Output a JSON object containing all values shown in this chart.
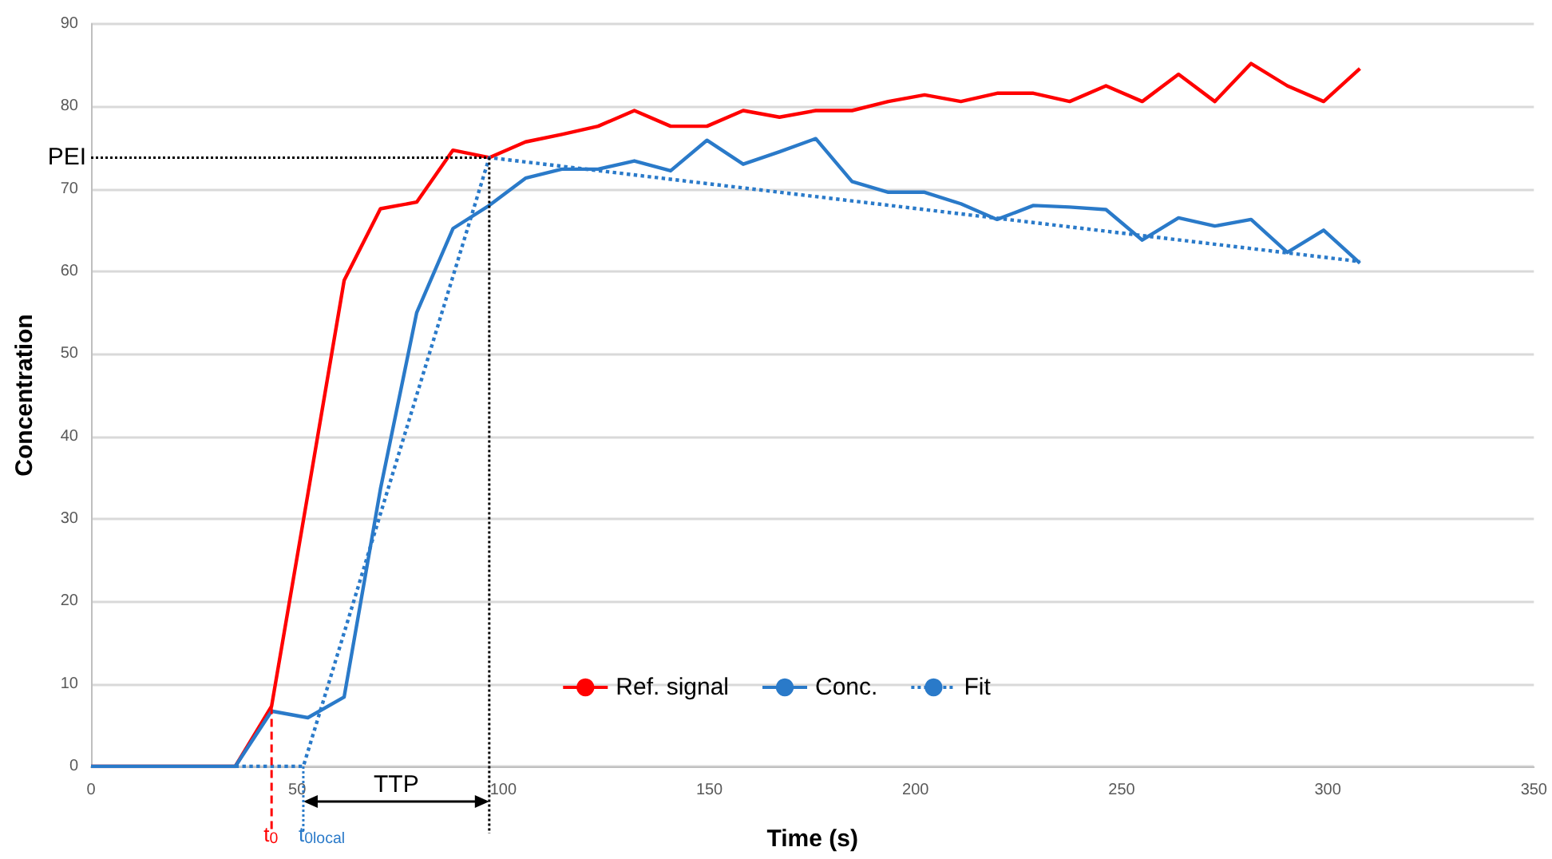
{
  "chart_data": {
    "type": "line",
    "xlabel": "Time (s)",
    "ylabel": "Concentration",
    "x": [
      0,
      35,
      43.8,
      52.6,
      61.4,
      70.2,
      79,
      87.8,
      96.6,
      105.4,
      114.2,
      123,
      131.8,
      140.6,
      149.4,
      158.2,
      167,
      175.8,
      184.6,
      193.4,
      202.2,
      211,
      219.8,
      228.6,
      237.4,
      246.2,
      255,
      263.8,
      272.6,
      281.4,
      290.2,
      299,
      307.8
    ],
    "series": [
      {
        "name": "Ref. signal",
        "color": "#ff0000",
        "values": [
          0,
          0,
          7.3,
          33,
          58.9,
          67.6,
          68.4,
          74.7,
          73.8,
          75.7,
          76.6,
          77.6,
          79.5,
          77.6,
          77.6,
          79.5,
          78.7,
          79.5,
          79.5,
          80.6,
          81.4,
          80.6,
          81.6,
          81.6,
          80.6,
          82.5,
          80.6,
          83.9,
          80.6,
          85.2,
          82.5,
          80.6,
          84.6
        ]
      },
      {
        "name": "Conc.",
        "color": "#2a7ac9",
        "values": [
          0,
          0,
          6.7,
          5.9,
          8.4,
          33.6,
          55.0,
          65.2,
          68.0,
          71.3,
          72.4,
          72.4,
          73.4,
          72.2,
          75.9,
          73.0,
          74.5,
          76.1,
          70.9,
          69.6,
          69.6,
          68.2,
          66.3,
          68.0,
          67.8,
          67.5,
          63.8,
          66.5,
          65.5,
          66.3,
          62.3,
          65.0,
          61.0
        ]
      },
      {
        "name": "Fit",
        "color": "#2a7ac9",
        "line_style": "dotted",
        "x": [
          35,
          51.5,
          96.6,
          307.8
        ],
        "values": [
          0,
          0,
          73.8,
          61.2
        ]
      }
    ],
    "xlim": [
      0,
      350
    ],
    "xticks": [
      0,
      50,
      100,
      150,
      200,
      250,
      300,
      350
    ],
    "ylim": [
      0,
      90
    ],
    "yticks": [
      0,
      10,
      20,
      30,
      40,
      50,
      60,
      70,
      80,
      90
    ],
    "grid": "y",
    "legend": "bottom",
    "marker": "none",
    "line_style": "solid",
    "ref_lines": [
      {
        "axis": "y",
        "value": 73.8,
        "label": "PEI",
        "color": "#000000",
        "line_style": "dotted"
      },
      {
        "axis": "x",
        "value": 43.8,
        "label": "t$_{0}$",
        "color": "#ff0000",
        "line_style": "dashed"
      },
      {
        "axis": "x",
        "value": 51.5,
        "label": "t$_{0local}$",
        "color": "#2a7ac9",
        "line_style": "dotted"
      },
      {
        "axis": "x",
        "value": 96.6,
        "color": "#000000",
        "line_style": "dotted"
      }
    ],
    "annotations": [
      "TTP"
    ]
  }
}
